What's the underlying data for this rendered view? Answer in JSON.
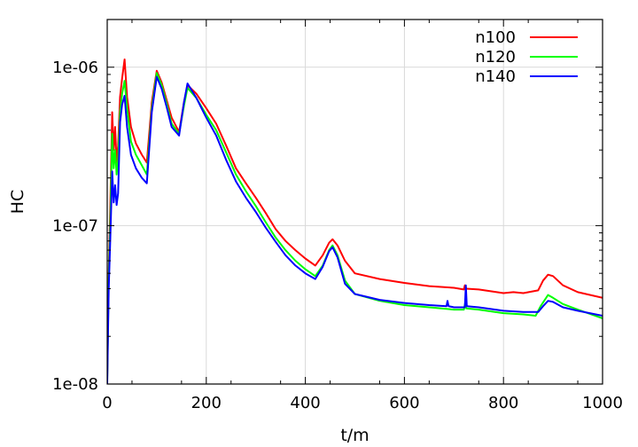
{
  "chart_data": {
    "type": "line",
    "title": "",
    "xlabel": "t/m",
    "ylabel": "HC",
    "xlim": [
      0,
      1000
    ],
    "ylim": [
      1e-08,
      2e-06
    ],
    "yscale": "log",
    "grid": true,
    "legend_position": "top-right",
    "x_ticks": [
      0,
      200,
      400,
      600,
      800,
      1000
    ],
    "x_tick_labels": [
      "0",
      "200",
      "400",
      "600",
      "800",
      "1000"
    ],
    "y_ticks": [
      1e-08,
      1e-07,
      1e-06
    ],
    "y_tick_labels": [
      "1e-08",
      "1e-07",
      "1e-06"
    ],
    "series": [
      {
        "name": "n100",
        "color": "#ff0000",
        "points": [
          [
            0,
            1.1e-08
          ],
          [
            3,
            5e-08
          ],
          [
            6,
            1.3e-07
          ],
          [
            10,
            5.2e-07
          ],
          [
            13,
            3e-07
          ],
          [
            16,
            4.2e-07
          ],
          [
            19,
            2.5e-07
          ],
          [
            22,
            3.2e-07
          ],
          [
            26,
            6.5e-07
          ],
          [
            30,
            8.5e-07
          ],
          [
            35,
            1.12e-06
          ],
          [
            40,
            6.5e-07
          ],
          [
            48,
            4.2e-07
          ],
          [
            58,
            3.3e-07
          ],
          [
            70,
            2.8e-07
          ],
          [
            80,
            2.5e-07
          ],
          [
            90,
            6e-07
          ],
          [
            100,
            9.5e-07
          ],
          [
            110,
            8e-07
          ],
          [
            120,
            6.2e-07
          ],
          [
            130,
            4.8e-07
          ],
          [
            145,
            3.9e-07
          ],
          [
            155,
            6e-07
          ],
          [
            162,
            7.7e-07
          ],
          [
            180,
            6.8e-07
          ],
          [
            200,
            5.5e-07
          ],
          [
            220,
            4.4e-07
          ],
          [
            240,
            3.2e-07
          ],
          [
            260,
            2.3e-07
          ],
          [
            280,
            1.85e-07
          ],
          [
            300,
            1.5e-07
          ],
          [
            320,
            1.2e-07
          ],
          [
            340,
            9.5e-08
          ],
          [
            360,
            8e-08
          ],
          [
            380,
            7e-08
          ],
          [
            400,
            6.2e-08
          ],
          [
            420,
            5.6e-08
          ],
          [
            435,
            6.5e-08
          ],
          [
            448,
            7.8e-08
          ],
          [
            455,
            8.2e-08
          ],
          [
            465,
            7.5e-08
          ],
          [
            480,
            6e-08
          ],
          [
            500,
            5e-08
          ],
          [
            550,
            4.6e-08
          ],
          [
            600,
            4.35e-08
          ],
          [
            650,
            4.15e-08
          ],
          [
            700,
            4.05e-08
          ],
          [
            720,
            3.95e-08
          ],
          [
            722,
            4.2e-08
          ],
          [
            725,
            4e-08
          ],
          [
            750,
            3.95e-08
          ],
          [
            800,
            3.75e-08
          ],
          [
            820,
            3.8e-08
          ],
          [
            840,
            3.75e-08
          ],
          [
            870,
            3.9e-08
          ],
          [
            880,
            4.5e-08
          ],
          [
            890,
            4.9e-08
          ],
          [
            900,
            4.8e-08
          ],
          [
            920,
            4.2e-08
          ],
          [
            950,
            3.8e-08
          ],
          [
            1000,
            3.5e-08
          ]
        ]
      },
      {
        "name": "n120",
        "color": "#00ff00",
        "points": [
          [
            0,
            1.05e-08
          ],
          [
            3,
            4.5e-08
          ],
          [
            6,
            1e-07
          ],
          [
            10,
            3.8e-07
          ],
          [
            13,
            2.3e-07
          ],
          [
            16,
            3e-07
          ],
          [
            19,
            2.1e-07
          ],
          [
            22,
            2.6e-07
          ],
          [
            26,
            5.2e-07
          ],
          [
            30,
            6.8e-07
          ],
          [
            35,
            8.2e-07
          ],
          [
            40,
            5.5e-07
          ],
          [
            48,
            3.4e-07
          ],
          [
            58,
            2.8e-07
          ],
          [
            70,
            2.4e-07
          ],
          [
            80,
            2.1e-07
          ],
          [
            90,
            5.5e-07
          ],
          [
            100,
            9.2e-07
          ],
          [
            110,
            7.7e-07
          ],
          [
            120,
            5.9e-07
          ],
          [
            130,
            4.4e-07
          ],
          [
            145,
            3.8e-07
          ],
          [
            155,
            5.7e-07
          ],
          [
            162,
            7.4e-07
          ],
          [
            180,
            6.4e-07
          ],
          [
            200,
            5e-07
          ],
          [
            220,
            4e-07
          ],
          [
            240,
            2.9e-07
          ],
          [
            260,
            2.1e-07
          ],
          [
            280,
            1.65e-07
          ],
          [
            300,
            1.33e-07
          ],
          [
            320,
            1.05e-07
          ],
          [
            340,
            8.4e-08
          ],
          [
            360,
            7e-08
          ],
          [
            380,
            6e-08
          ],
          [
            400,
            5.3e-08
          ],
          [
            420,
            4.8e-08
          ],
          [
            435,
            5.6e-08
          ],
          [
            448,
            7e-08
          ],
          [
            455,
            7.5e-08
          ],
          [
            465,
            6.5e-08
          ],
          [
            480,
            4.5e-08
          ],
          [
            500,
            3.7e-08
          ],
          [
            550,
            3.35e-08
          ],
          [
            600,
            3.15e-08
          ],
          [
            650,
            3.05e-08
          ],
          [
            700,
            2.95e-08
          ],
          [
            720,
            2.95e-08
          ],
          [
            723,
            3.3e-08
          ],
          [
            725,
            3e-08
          ],
          [
            750,
            2.95e-08
          ],
          [
            800,
            2.8e-08
          ],
          [
            840,
            2.75e-08
          ],
          [
            865,
            2.7e-08
          ],
          [
            875,
            3.1e-08
          ],
          [
            890,
            3.65e-08
          ],
          [
            900,
            3.5e-08
          ],
          [
            920,
            3.2e-08
          ],
          [
            950,
            2.95e-08
          ],
          [
            1000,
            2.6e-08
          ]
        ]
      },
      {
        "name": "n140",
        "color": "#0000ff",
        "points": [
          [
            0,
            1e-08
          ],
          [
            3,
            4e-08
          ],
          [
            6,
            8e-08
          ],
          [
            10,
            2.2e-07
          ],
          [
            13,
            1.4e-07
          ],
          [
            16,
            1.8e-07
          ],
          [
            19,
            1.35e-07
          ],
          [
            22,
            1.6e-07
          ],
          [
            26,
            4.5e-07
          ],
          [
            30,
            5.8e-07
          ],
          [
            35,
            6.6e-07
          ],
          [
            40,
            4.2e-07
          ],
          [
            48,
            2.8e-07
          ],
          [
            58,
            2.3e-07
          ],
          [
            70,
            2e-07
          ],
          [
            80,
            1.85e-07
          ],
          [
            90,
            5.2e-07
          ],
          [
            100,
            8.7e-07
          ],
          [
            110,
            7.3e-07
          ],
          [
            120,
            5.6e-07
          ],
          [
            130,
            4.2e-07
          ],
          [
            145,
            3.7e-07
          ],
          [
            155,
            6e-07
          ],
          [
            162,
            7.9e-07
          ],
          [
            180,
            6.4e-07
          ],
          [
            200,
            4.8e-07
          ],
          [
            220,
            3.7e-07
          ],
          [
            240,
            2.6e-07
          ],
          [
            260,
            1.9e-07
          ],
          [
            280,
            1.5e-07
          ],
          [
            300,
            1.22e-07
          ],
          [
            320,
            9.7e-08
          ],
          [
            340,
            7.9e-08
          ],
          [
            360,
            6.5e-08
          ],
          [
            380,
            5.6e-08
          ],
          [
            400,
            5e-08
          ],
          [
            420,
            4.6e-08
          ],
          [
            435,
            5.5e-08
          ],
          [
            448,
            6.9e-08
          ],
          [
            455,
            7.3e-08
          ],
          [
            465,
            6.3e-08
          ],
          [
            480,
            4.3e-08
          ],
          [
            500,
            3.7e-08
          ],
          [
            550,
            3.4e-08
          ],
          [
            600,
            3.25e-08
          ],
          [
            650,
            3.15e-08
          ],
          [
            685,
            3.1e-08
          ],
          [
            687,
            3.35e-08
          ],
          [
            689,
            3.1e-08
          ],
          [
            700,
            3.05e-08
          ],
          [
            722,
            3.05e-08
          ],
          [
            724,
            4.2e-08
          ],
          [
            726,
            3.1e-08
          ],
          [
            750,
            3.05e-08
          ],
          [
            800,
            2.9e-08
          ],
          [
            840,
            2.85e-08
          ],
          [
            870,
            2.85e-08
          ],
          [
            880,
            3.1e-08
          ],
          [
            890,
            3.35e-08
          ],
          [
            900,
            3.3e-08
          ],
          [
            920,
            3.05e-08
          ],
          [
            950,
            2.9e-08
          ],
          [
            1000,
            2.7e-08
          ]
        ]
      }
    ]
  }
}
